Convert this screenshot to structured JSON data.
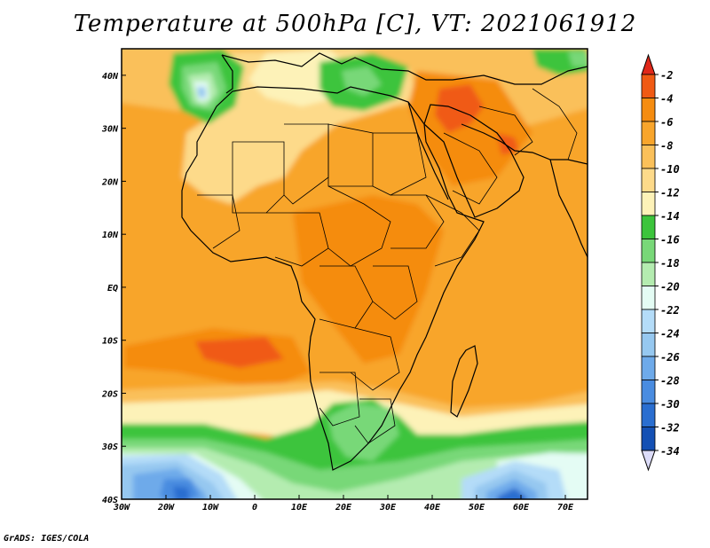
{
  "title": "Temperature at 500hPa [C], VT: 2021061912",
  "footer": "GrADS: IGES/COLA",
  "map": {
    "variable": "Temperature at 500hPa",
    "units": "C",
    "valid_time": "2021061912",
    "lon_range": [
      -30,
      75
    ],
    "lat_range": [
      -40,
      45
    ],
    "x_ticks": [
      "30W",
      "20W",
      "10W",
      "0",
      "10E",
      "20E",
      "30E",
      "40E",
      "50E",
      "60E",
      "70E"
    ],
    "y_ticks": [
      "40N",
      "30N",
      "20N",
      "10N",
      "EQ",
      "10S",
      "20S",
      "30S",
      "40S"
    ]
  },
  "colorbar": {
    "labels": [
      "-2",
      "-4",
      "-6",
      "-8",
      "-10",
      "-12",
      "-14",
      "-16",
      "-18",
      "-20",
      "-22",
      "-24",
      "-26",
      "-28",
      "-30",
      "-32",
      "-34"
    ],
    "colors": [
      "#f05a14",
      "#f58c10",
      "#f8a52c",
      "#fac05a",
      "#fdda8a",
      "#fdf2b8",
      "#3cc43c",
      "#78d878",
      "#b4ecb0",
      "#e4fcf4",
      "#b4dcf8",
      "#96c8f0",
      "#6eaaea",
      "#4a8ce0",
      "#2a6ed0",
      "#1450b4",
      "#0a3288"
    ],
    "top_color": "#e0281a",
    "bottom_color": "#dcdcf8"
  }
}
